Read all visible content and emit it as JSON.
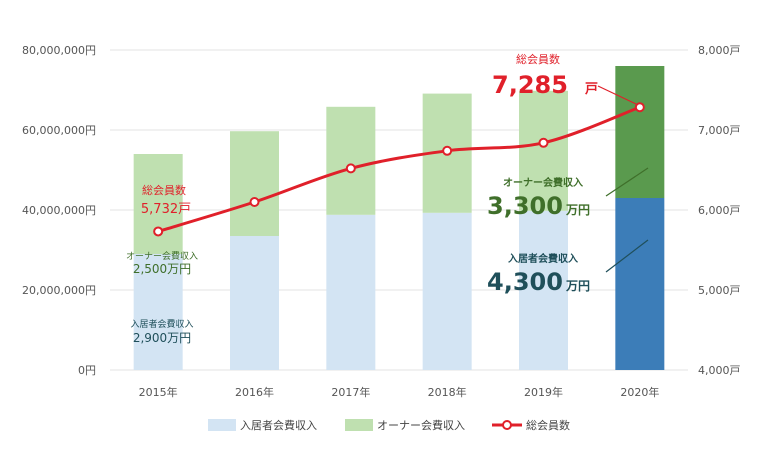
{
  "chart_data": {
    "type": "bar",
    "categories": [
      "2015年",
      "2016年",
      "2017年",
      "2018年",
      "2019年",
      "2020年"
    ],
    "series": [
      {
        "name": "入居者会費収入",
        "kind": "bar",
        "axis": "left",
        "values": [
          29000000,
          33500000,
          38800000,
          39300000,
          39800000,
          43000000
        ]
      },
      {
        "name": "オーナー会費収入",
        "kind": "bar",
        "axis": "left",
        "values": [
          25000000,
          26200000,
          27000000,
          29800000,
          30000000,
          33000000
        ]
      },
      {
        "name": "総会員数",
        "kind": "line",
        "axis": "right",
        "values": [
          5732,
          6100,
          6520,
          6740,
          6840,
          7285
        ]
      }
    ],
    "y_left": {
      "ylim": [
        0,
        80000000
      ],
      "ticks": [
        "0円",
        "20,000,000円",
        "40,000,000円",
        "60,000,000円",
        "80,000,000円"
      ]
    },
    "y_right": {
      "ylim": [
        4000,
        8000
      ],
      "ticks": [
        "4,000戸",
        "5,000戸",
        "6,000戸",
        "7,000戸",
        "8,000戸"
      ]
    },
    "colors": {
      "resident": "#d3e4f3",
      "owner": "#bfe0b0",
      "resident_2020": "#3c7db8",
      "owner_2020": "#5a9a4e",
      "line": "#e0202a",
      "label_red": "#e0202a",
      "label_green": "#3f6f2a",
      "label_blue": "#1f4f5a"
    },
    "grid": true,
    "legend": {
      "position": "bottom",
      "items": [
        "入居者会費収入",
        "オーナー会費収入",
        "総会員数"
      ]
    },
    "annotations": {
      "total_2015_title": "総会員数",
      "total_2015_value": "5,732戸",
      "owner_2015_title": "オーナー会費収入",
      "owner_2015_value": "2,500万円",
      "resident_2015_title": "入居者会費収入",
      "resident_2015_value": "2,900万円",
      "total_2020_title": "総会員数",
      "total_2020_number": "7,285",
      "total_2020_unit": "戸",
      "owner_2020_title": "オーナー会費収入",
      "owner_2020_number": "3,300",
      "owner_2020_unit": "万円",
      "resident_2020_title": "入居者会費収入",
      "resident_2020_number": "4,300",
      "resident_2020_unit": "万円"
    }
  }
}
